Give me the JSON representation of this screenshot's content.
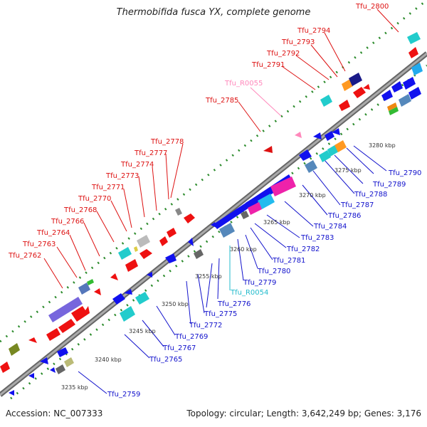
{
  "title": "Thermobifida fusca YX, complete genome",
  "accession": "Accession: NC_007333",
  "topology": "Topology: circular; Length: 3,642,249 bp; Genes: 3,176",
  "colors": {
    "backbone": "#8a8a8a",
    "forward_label": "#dd1111",
    "reverse_label": "#1111cc",
    "rna_pink": "#ff88bb",
    "rna_cyan": "#22bbcc",
    "dots": "#2a8a2a"
  },
  "scale_labels": [
    "3235 kbp",
    "3240 kbp",
    "3245 kbp",
    "3250 kbp",
    "3255 kbp",
    "3260 kbp",
    "3265 kbp",
    "3270 kbp",
    "3275 kbp",
    "3280 kbp"
  ],
  "forward_genes": [
    "Tfu_2762",
    "Tfu_2763",
    "Tfu_2764",
    "Tfu_2766",
    "Tfu_2768",
    "Tfu_2770",
    "Tfu_2771",
    "Tfu_2773",
    "Tfu_2774",
    "Tfu_2777",
    "Tfu_2778",
    "Tfu_2785",
    "Tfu_2791",
    "Tfu_2792",
    "Tfu_2793",
    "Tfu_2794",
    "Tfu_2800"
  ],
  "reverse_genes": [
    "Tfu_2759",
    "Tfu_2765",
    "Tfu_2767",
    "Tfu_2769",
    "Tfu_2772",
    "Tfu_2775",
    "Tfu_2776",
    "Tfu_2779",
    "Tfu_2780",
    "Tfu_2781",
    "Tfu_2782",
    "Tfu_2783",
    "Tfu_2784",
    "Tfu_2786",
    "Tfu_2787",
    "Tfu_2788",
    "Tfu_2789",
    "Tfu_2790"
  ],
  "rna_forward": "Tfu_R0055",
  "rna_reverse": "Tfu_R0054"
}
